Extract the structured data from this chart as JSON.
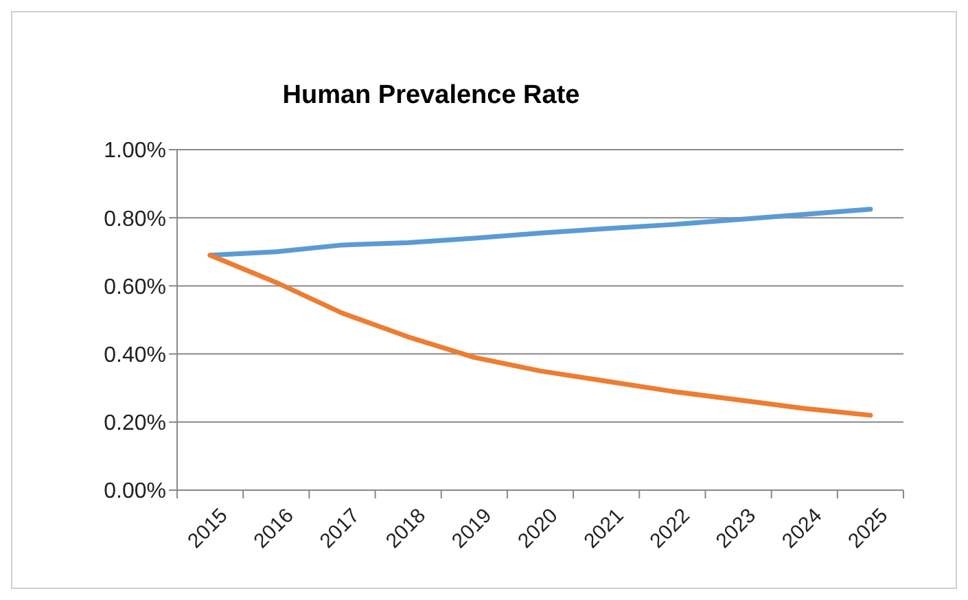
{
  "chart_data": {
    "type": "line",
    "title": "Human Prevalence Rate",
    "categories": [
      "2015",
      "2016",
      "2017",
      "2018",
      "2019",
      "2020",
      "2021",
      "2022",
      "2023",
      "2024",
      "2025"
    ],
    "series": [
      {
        "color": "#5b9bd5",
        "values": [
          0.69,
          0.7,
          0.72,
          0.727,
          0.74,
          0.755,
          0.768,
          0.78,
          0.795,
          0.81,
          0.825
        ]
      },
      {
        "color": "#ed7d31",
        "values": [
          0.69,
          0.61,
          0.52,
          0.45,
          0.39,
          0.35,
          0.32,
          0.29,
          0.265,
          0.24,
          0.22
        ]
      }
    ],
    "ylim": [
      0,
      1
    ],
    "yticks": [
      {
        "value": 0,
        "label": "0.00%"
      },
      {
        "value": 0.2,
        "label": "0.20%"
      },
      {
        "value": 0.4,
        "label": "0.40%"
      },
      {
        "value": 0.6,
        "label": "0.60%"
      },
      {
        "value": 0.8,
        "label": "0.80%"
      },
      {
        "value": 1,
        "label": "1.00%"
      }
    ],
    "grid": "y",
    "legend": false,
    "marker": "none",
    "line_style": "solid"
  }
}
